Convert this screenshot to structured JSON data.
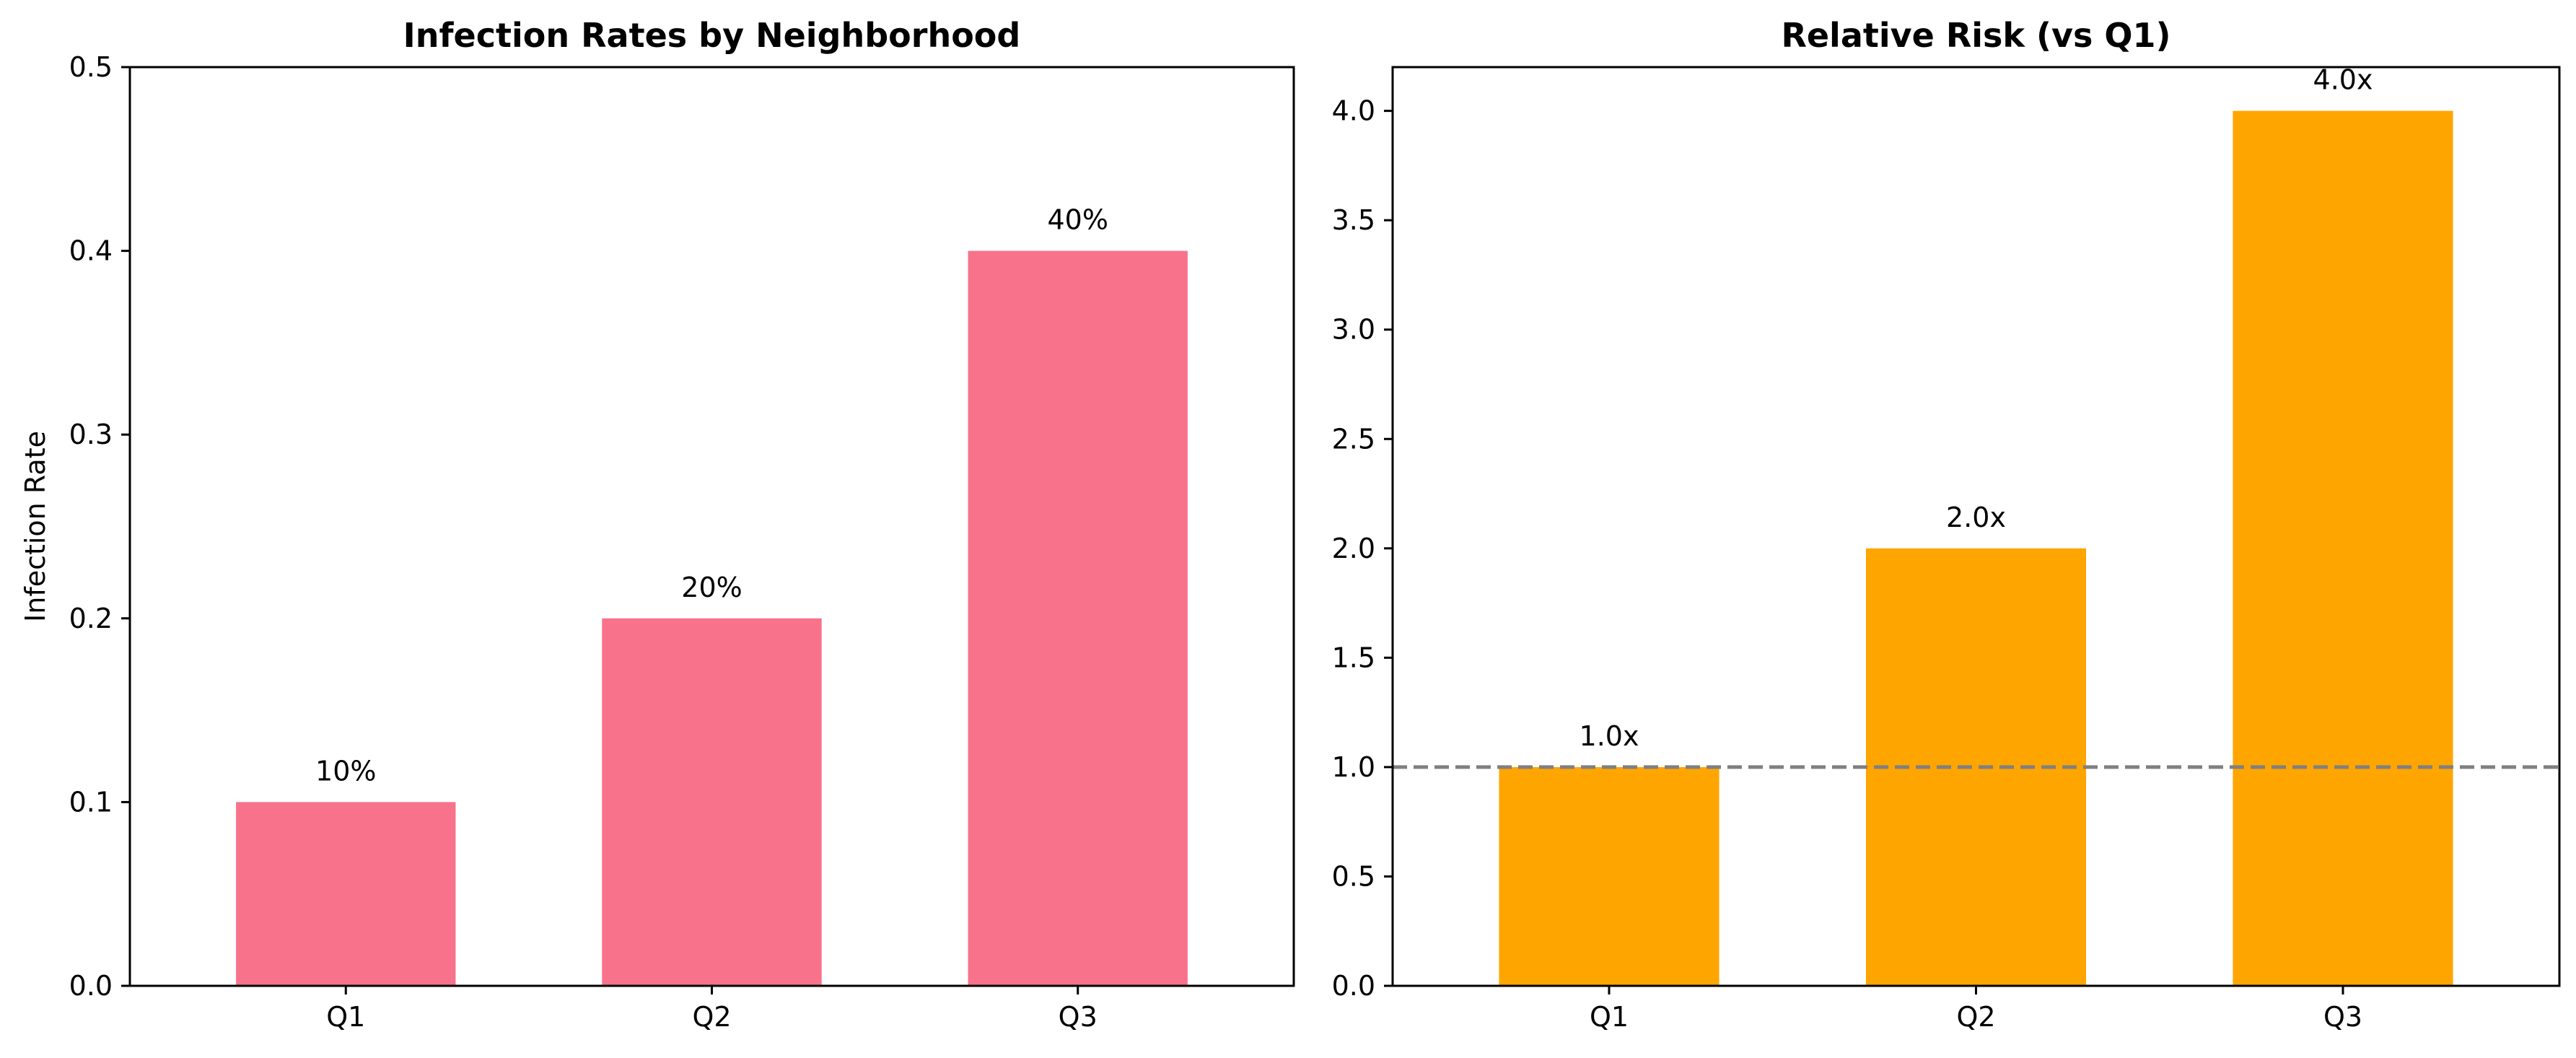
{
  "chart_data": [
    {
      "type": "bar",
      "title": "Infection Rates by Neighborhood",
      "xlabel": "",
      "ylabel": "Infection Rate",
      "categories": [
        "Q1",
        "Q2",
        "Q3"
      ],
      "values": [
        0.1,
        0.2,
        0.4
      ],
      "data_labels": [
        "10%",
        "20%",
        "40%"
      ],
      "ylim": [
        0,
        0.5
      ],
      "yticks": [
        0.0,
        0.1,
        0.2,
        0.3,
        0.4,
        0.5
      ],
      "ytick_labels": [
        "0.0",
        "0.1",
        "0.2",
        "0.3",
        "0.4",
        "0.5"
      ],
      "bar_color": "#f7728a",
      "grid": false
    },
    {
      "type": "bar",
      "title": "Relative Risk (vs Q1)",
      "xlabel": "",
      "ylabel": "",
      "categories": [
        "Q1",
        "Q2",
        "Q3"
      ],
      "values": [
        1.0,
        2.0,
        4.0
      ],
      "data_labels": [
        "1.0x",
        "2.0x",
        "4.0x"
      ],
      "ylim": [
        0,
        4.2
      ],
      "yticks": [
        0.0,
        0.5,
        1.0,
        1.5,
        2.0,
        2.5,
        3.0,
        3.5,
        4.0
      ],
      "ytick_labels": [
        "0.0",
        "0.5",
        "1.0",
        "1.5",
        "2.0",
        "2.5",
        "3.0",
        "3.5",
        "4.0"
      ],
      "bar_color": "#ffa500",
      "reference_line": {
        "y": 1.0,
        "style": "dashed",
        "color": "#808080"
      },
      "grid": false
    }
  ]
}
